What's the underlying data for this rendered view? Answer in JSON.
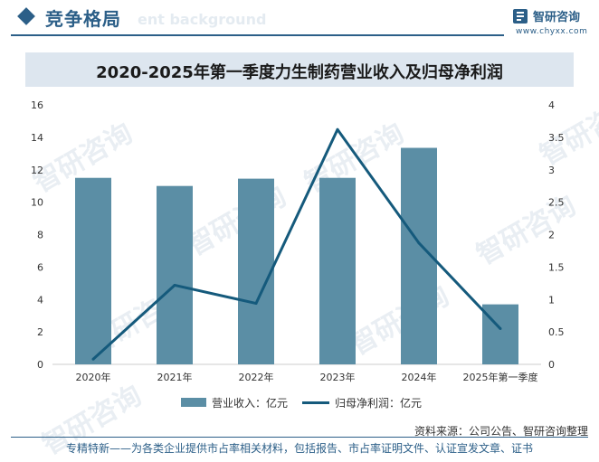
{
  "header": {
    "section_title": "竞争格局",
    "watermark_text": "ent background",
    "logo_name": "智研咨询",
    "logo_url": "www.chyxx.com"
  },
  "chart_data": {
    "type": "bar+line",
    "title": "2020-2025年第一季度力生制药营业收入及归母净利润",
    "categories": [
      "2020年",
      "2021年",
      "2022年",
      "2023年",
      "2024年",
      "2025年第一季度"
    ],
    "series": [
      {
        "name": "营业收入：亿元",
        "type": "bar",
        "axis": "left",
        "color": "#5b8ea5",
        "values": [
          11.5,
          11.0,
          11.45,
          11.5,
          13.35,
          3.7
        ]
      },
      {
        "name": "归母净利润：亿元",
        "type": "line",
        "axis": "right",
        "color": "#155a7c",
        "values": [
          0.08,
          1.22,
          0.94,
          3.62,
          1.87,
          0.55
        ]
      }
    ],
    "yleft_ticks": [
      "0",
      "2",
      "4",
      "6",
      "8",
      "10",
      "12",
      "14",
      "16"
    ],
    "yright_ticks": [
      "0",
      "0.5",
      "1",
      "1.5",
      "2",
      "2.5",
      "3",
      "3.5",
      "4"
    ],
    "yleft_lim": [
      0,
      16
    ],
    "yright_lim": [
      0,
      4
    ],
    "legend_position": "bottom"
  },
  "source_text": "资料来源：公司公告、智研咨询整理",
  "footer_text": "专精特新——为各类企业提供市占率相关材料，包括报告、市占率证明文件、认证宣发文章、证书",
  "watermark_brand": "智研咨询"
}
